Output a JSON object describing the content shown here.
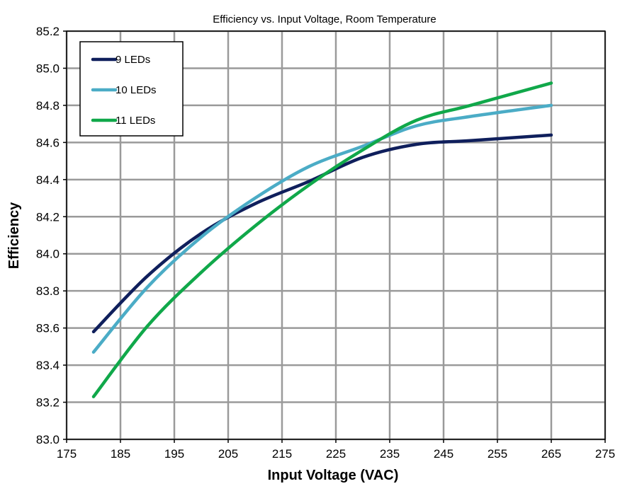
{
  "chart_data": {
    "type": "line",
    "title": "Efficiency vs. Input Voltage, Room Temperature",
    "xlabel": "Input Voltage (VAC)",
    "ylabel": "Efficiency",
    "xlim": [
      175,
      275
    ],
    "ylim": [
      83.0,
      85.2
    ],
    "xticks": [
      "175",
      "185",
      "195",
      "205",
      "215",
      "225",
      "235",
      "245",
      "255",
      "265",
      "275"
    ],
    "yticks": [
      "83.0",
      "83.2",
      "83.4",
      "83.6",
      "83.8",
      "84.0",
      "84.2",
      "84.4",
      "84.6",
      "84.8",
      "85.0",
      "85.2"
    ],
    "grid": true,
    "legend_position": "top-left",
    "x": [
      180,
      190,
      200,
      210,
      220,
      230,
      240,
      250,
      265
    ],
    "series": [
      {
        "name": "9 LEDs",
        "color": "#0f1f5c",
        "values": [
          83.58,
          83.88,
          84.11,
          84.27,
          84.39,
          84.52,
          84.59,
          84.61,
          84.64
        ]
      },
      {
        "name": "10 LEDs",
        "color": "#4bacc6",
        "values": [
          83.47,
          83.82,
          84.09,
          84.3,
          84.47,
          84.58,
          84.69,
          84.74,
          84.8
        ]
      },
      {
        "name": "11 LEDs",
        "color": "#10a84a",
        "values": [
          83.23,
          83.61,
          83.9,
          84.15,
          84.37,
          84.56,
          84.72,
          84.8,
          84.92
        ]
      }
    ]
  }
}
